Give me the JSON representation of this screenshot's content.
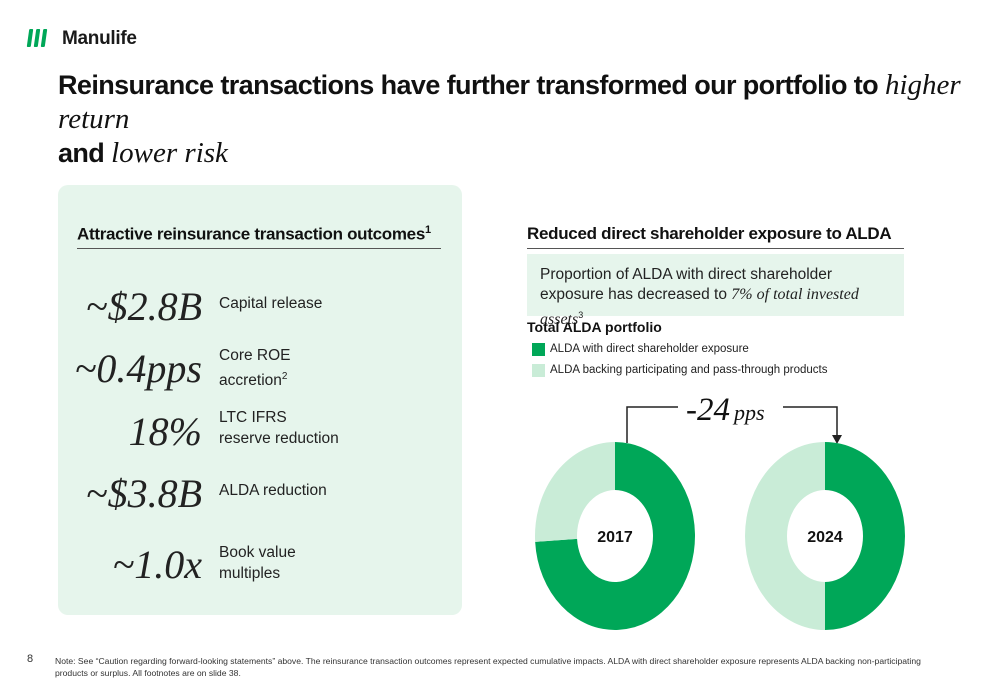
{
  "brand": {
    "name": "Manulife",
    "color": "#00a758"
  },
  "headline": {
    "part1": "Reinsurance transactions have further transformed our portfolio to ",
    "italic1": "higher return",
    "part2": "and ",
    "italic2": "lower risk"
  },
  "left": {
    "title": "Attractive reinsurance transaction outcomes",
    "title_sup": "1",
    "metrics": [
      {
        "value": "~$2.8B",
        "label": "Capital release",
        "sup": ""
      },
      {
        "value": "~0.4pps",
        "label": "Core ROE accretion",
        "sup": "2"
      },
      {
        "value": "18%",
        "label": "LTC IFRS reserve reduction",
        "sup": ""
      },
      {
        "value": "~$3.8B",
        "label": "ALDA reduction",
        "sup": ""
      },
      {
        "value": "~1.0x",
        "label": "Book value multiples",
        "sup": ""
      }
    ]
  },
  "right": {
    "title": "Reduced direct shareholder exposure to ALDA",
    "callout": {
      "text1": "Proportion of ALDA with direct shareholder exposure has decreased to ",
      "italic": "7% of total invested assets",
      "sup": "3"
    },
    "subtitle": "Total ALDA portfolio",
    "legend": [
      {
        "label": "ALDA with direct shareholder exposure",
        "color": "#00a758"
      },
      {
        "label": "ALDA backing participating and pass-through products",
        "color": "#c9ecd7"
      }
    ],
    "change": {
      "value": "-24",
      "unit": "pps"
    }
  },
  "chart_data": {
    "type": "pie",
    "title": "Total ALDA portfolio",
    "series_names": [
      "ALDA with direct shareholder exposure",
      "ALDA backing participating and pass-through products"
    ],
    "charts": [
      {
        "label": "2017",
        "values": [
          74,
          26
        ]
      },
      {
        "label": "2024",
        "values": [
          50,
          50
        ]
      }
    ]
  },
  "footer": {
    "page": "8",
    "note": "Note: See “Caution regarding forward-looking statements” above. The reinsurance transaction outcomes represent expected cumulative impacts. ALDA with direct shareholder exposure represents ALDA backing non-participating products or surplus. All footnotes are on slide 38."
  }
}
